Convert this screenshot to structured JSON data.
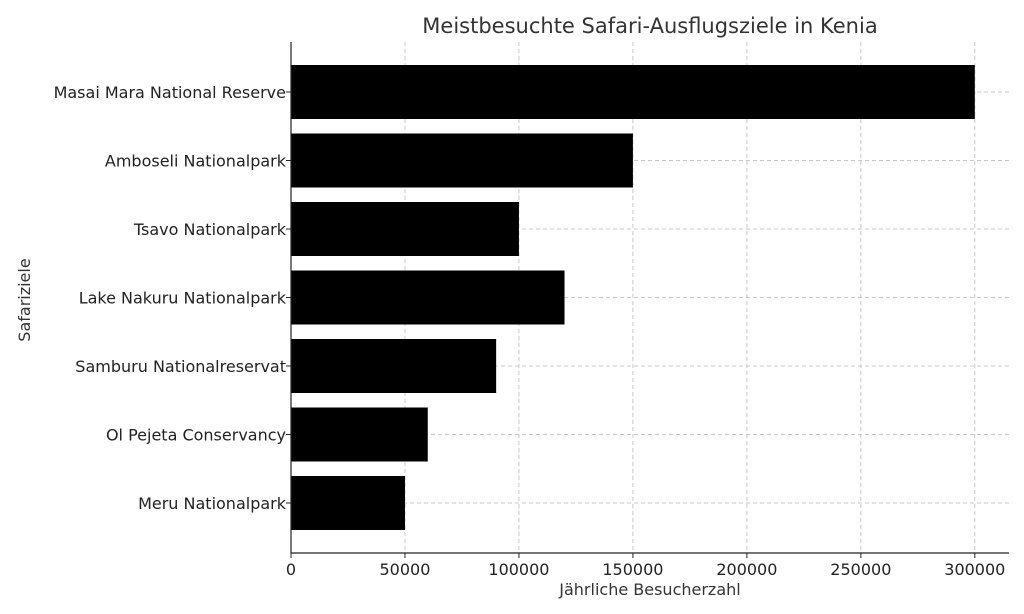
{
  "chart_data": {
    "type": "bar",
    "orientation": "horizontal",
    "title": "Meistbesuchte Safari-Ausflugsziele in Kenia",
    "xlabel": "Jährliche Besucherzahl",
    "ylabel": "Safariziele",
    "categories": [
      "Masai Mara National Reserve",
      "Amboseli Nationalpark",
      "Tsavo Nationalpark",
      "Lake Nakuru Nationalpark",
      "Samburu Nationalreservat",
      "Ol Pejeta Conservancy",
      "Meru Nationalpark"
    ],
    "values": [
      300000,
      150000,
      100000,
      120000,
      90000,
      60000,
      50000
    ],
    "xlim": [
      0,
      315000
    ],
    "xticks": [
      0,
      50000,
      100000,
      150000,
      200000,
      250000,
      300000
    ],
    "xtick_labels": [
      "0",
      "50000",
      "100000",
      "150000",
      "200000",
      "250000",
      "300000"
    ],
    "grid": true,
    "bar_color": "#000000",
    "grid_color": "#c8c8c8",
    "text_color": "#333333"
  }
}
